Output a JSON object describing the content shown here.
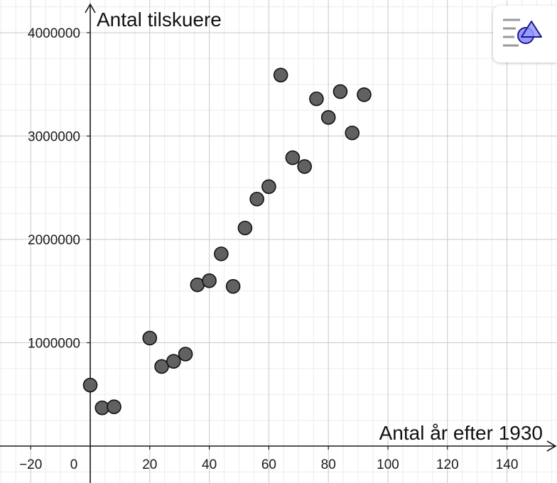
{
  "chart_data": {
    "type": "scatter",
    "title": "",
    "xlabel": "Antal år efter 1930",
    "ylabel": "Antal tilskuere",
    "xlim": [
      -28,
      156
    ],
    "ylim": [
      -350000,
      4250000
    ],
    "grid": true,
    "x_ticks": [
      -20,
      0,
      20,
      40,
      60,
      80,
      100,
      120,
      140
    ],
    "x_tick_labels": [
      "−20",
      "0",
      "20",
      "40",
      "60",
      "80",
      "100",
      "120",
      "140"
    ],
    "y_ticks": [
      1000000,
      2000000,
      3000000,
      4000000
    ],
    "y_tick_labels": [
      "1000000",
      "2000000",
      "3000000",
      "4000000"
    ],
    "point_color": "#616161",
    "points": [
      {
        "x": 0,
        "y": 590000
      },
      {
        "x": 4,
        "y": 370000
      },
      {
        "x": 8,
        "y": 380000
      },
      {
        "x": 20,
        "y": 1045000
      },
      {
        "x": 24,
        "y": 770000
      },
      {
        "x": 28,
        "y": 820000
      },
      {
        "x": 32,
        "y": 890000
      },
      {
        "x": 36,
        "y": 1560000
      },
      {
        "x": 40,
        "y": 1600000
      },
      {
        "x": 44,
        "y": 1860000
      },
      {
        "x": 48,
        "y": 1545000
      },
      {
        "x": 52,
        "y": 2110000
      },
      {
        "x": 56,
        "y": 2390000
      },
      {
        "x": 60,
        "y": 2510000
      },
      {
        "x": 64,
        "y": 3590000
      },
      {
        "x": 68,
        "y": 2790000
      },
      {
        "x": 72,
        "y": 2705000
      },
      {
        "x": 76,
        "y": 3360000
      },
      {
        "x": 80,
        "y": 3180000
      },
      {
        "x": 84,
        "y": 3430000
      },
      {
        "x": 88,
        "y": 3030000
      },
      {
        "x": 92,
        "y": 3400000
      }
    ]
  },
  "toolbar": {
    "style_bar_icon": "graphics-style-bar-icon",
    "icon_colors": {
      "lines": "#999999",
      "shape_fill": "#9999ff",
      "shape_stroke": "#1a1a8c"
    }
  }
}
